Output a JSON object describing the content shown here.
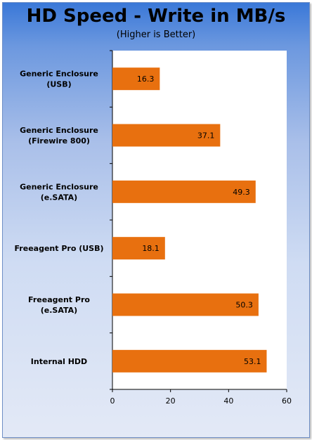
{
  "chart_data": {
    "type": "bar",
    "orientation": "horizontal",
    "title": "HD Speed - Write in MB/s",
    "subtitle": "(Higher is Better)",
    "categories": [
      [
        "Generic Enclosure",
        "(USB)"
      ],
      [
        "Generic Enclosure",
        "(Firewire 800)"
      ],
      [
        "Generic Enclosure",
        "(e.SATA)"
      ],
      [
        "Freeagent Pro (USB)"
      ],
      [
        "Freeagent Pro",
        "(e.SATA)"
      ],
      [
        "Internal HDD"
      ]
    ],
    "values": [
      16.3,
      37.1,
      49.3,
      18.1,
      50.3,
      53.1
    ],
    "data_labels": [
      "16.3",
      "37.1",
      "49.3",
      "18.1",
      "50.3",
      "53.1"
    ],
    "xlim": [
      0,
      60
    ],
    "xticks": [
      0,
      20,
      40,
      60
    ],
    "tick_labels": [
      "0",
      "20",
      "40",
      "60"
    ],
    "bar_color": "#e8700f",
    "plot_background": "#ffffff",
    "grid": false,
    "legend": "none"
  }
}
